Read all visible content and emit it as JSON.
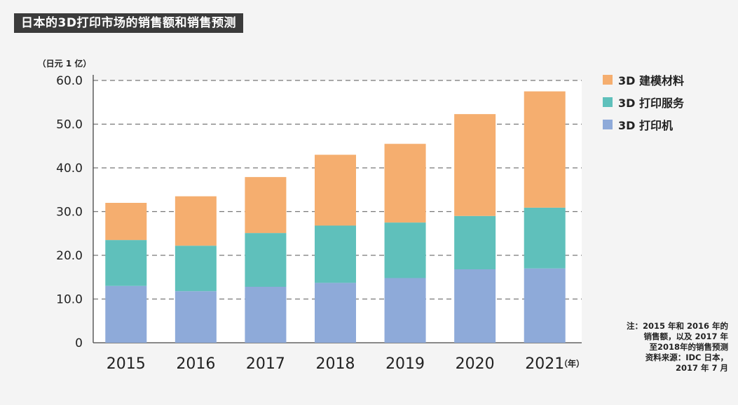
{
  "title": "日本的3D打印市场的销售额和销售预测",
  "chart_data": {
    "type": "bar",
    "stacked": true,
    "unit_label": "（日元 1 亿）",
    "x_unit_label": "（年）",
    "categories": [
      "2015",
      "2016",
      "2017",
      "2018",
      "2019",
      "2020",
      "2021"
    ],
    "ylim": [
      0,
      60
    ],
    "y_ticks": [
      "0",
      "10.0",
      "20.0",
      "30.0",
      "40.0",
      "50.0",
      "60.0"
    ],
    "grid": true,
    "legend_position": "right",
    "series": [
      {
        "name": "3D 打印机",
        "color": "#8eaad9",
        "values": [
          13.0,
          11.8,
          12.8,
          13.7,
          14.8,
          16.8,
          17.0
        ]
      },
      {
        "name": "3D 打印服务",
        "color": "#5fc0bb",
        "values": [
          10.5,
          10.4,
          12.3,
          13.1,
          12.7,
          12.2,
          13.9
        ]
      },
      {
        "name": "3D 建模材料",
        "color": "#f5ae6f",
        "values": [
          8.5,
          11.3,
          12.8,
          16.2,
          18.0,
          23.3,
          26.6
        ]
      }
    ],
    "legend_order": [
      2,
      1,
      0
    ]
  },
  "note": [
    "注：2015 年和 2016 年的",
    "销售额，以及 2017 年",
    "至2018年的销售预测",
    "资料来源：IDC 日本，",
    "2017 年 7 月"
  ]
}
